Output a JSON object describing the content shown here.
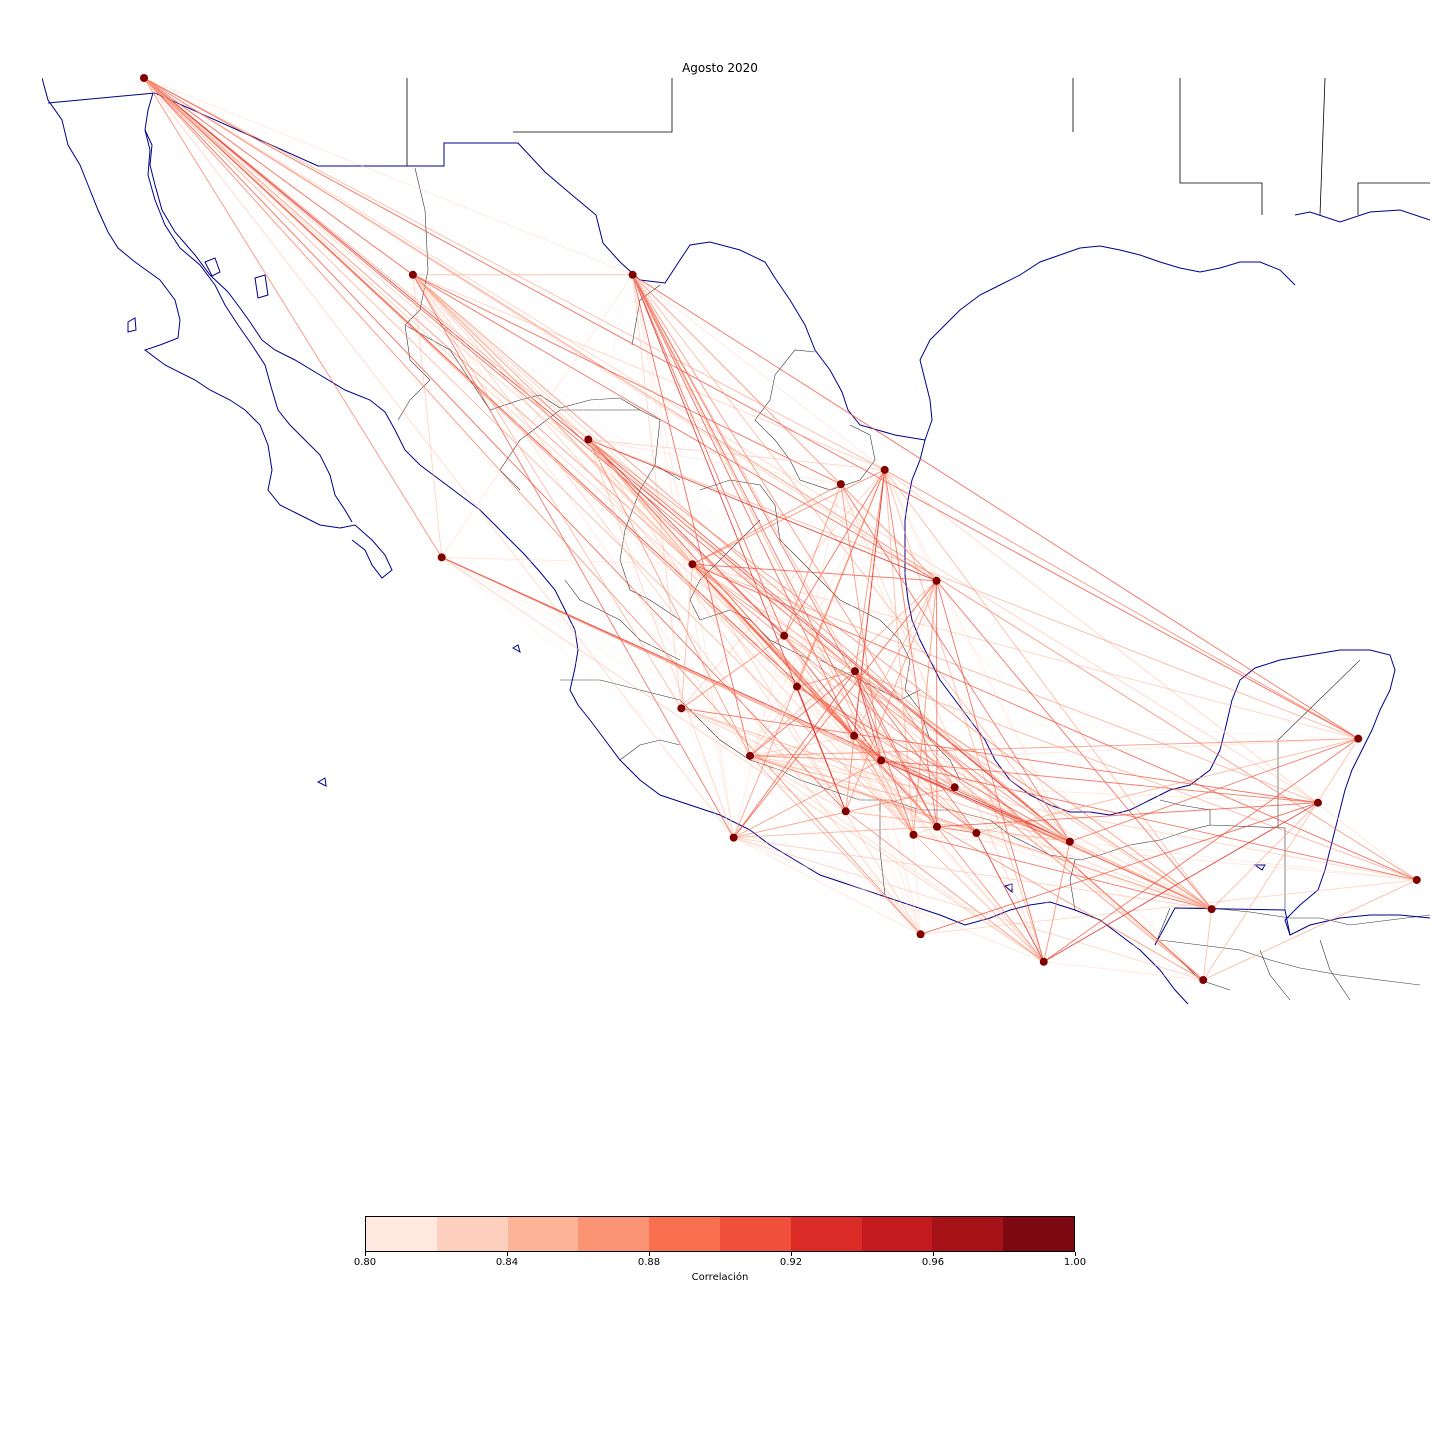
{
  "title": "Agosto 2020",
  "colorbar": {
    "label": "Correlación",
    "ticks": [
      "0.80",
      "0.84",
      "0.88",
      "0.92",
      "0.96",
      "1.00"
    ],
    "tick_values": [
      0.8,
      0.84,
      0.88,
      0.92,
      0.96,
      1.0
    ],
    "range": [
      0.8,
      1.0
    ],
    "colors": [
      "#fee8df",
      "#fcd0bc",
      "#fcb498",
      "#fb9473",
      "#f9704f",
      "#f0503b",
      "#db2b26",
      "#c31a1f",
      "#a51217",
      "#7d0812"
    ]
  },
  "colors": {
    "coast": "#00008b",
    "borders": "#000000",
    "node": "#800000"
  },
  "chart_data": {
    "type": "network-map",
    "title": "Agosto 2020",
    "colorbar_label": "Correlación",
    "value_range": [
      0.8,
      1.0
    ],
    "nodes": [
      {
        "id": "tijuana",
        "lat": 32.52,
        "lon": -117.03
      },
      {
        "id": "hermosillo",
        "lat": 29.08,
        "lon": -110.96
      },
      {
        "id": "chihuahua",
        "lat": 29.08,
        "lon": -106.0
      },
      {
        "id": "monterrey",
        "lat": 25.67,
        "lon": -100.31
      },
      {
        "id": "la-paz",
        "lat": 24.14,
        "lon": -110.31
      },
      {
        "id": "culiacan",
        "lat": 26.2,
        "lon": -107.0
      },
      {
        "id": "durango",
        "lat": 24.02,
        "lon": -104.65
      },
      {
        "id": "saltillo",
        "lat": 25.42,
        "lon": -101.3
      },
      {
        "id": "ciudad-victoria",
        "lat": 23.73,
        "lon": -99.14
      },
      {
        "id": "zacatecas",
        "lat": 22.77,
        "lon": -102.58
      },
      {
        "id": "tepic",
        "lat": 21.5,
        "lon": -104.9
      },
      {
        "id": "aguascalientes",
        "lat": 21.88,
        "lon": -102.29
      },
      {
        "id": "san-luis-potosi",
        "lat": 22.15,
        "lon": -100.98
      },
      {
        "id": "guadalajara",
        "lat": 20.67,
        "lon": -103.35
      },
      {
        "id": "guanajuato",
        "lat": 21.02,
        "lon": -101.0
      },
      {
        "id": "queretaro",
        "lat": 20.59,
        "lon": -100.39
      },
      {
        "id": "morelia",
        "lat": 19.7,
        "lon": -101.19
      },
      {
        "id": "pachuca",
        "lat": 20.12,
        "lon": -98.73
      },
      {
        "id": "colima",
        "lat": 19.24,
        "lon": -103.72
      },
      {
        "id": "toluca",
        "lat": 19.29,
        "lon": -99.66
      },
      {
        "id": "cdmx",
        "lat": 19.43,
        "lon": -99.13
      },
      {
        "id": "tlaxcala",
        "lat": 19.32,
        "lon": -98.24
      },
      {
        "id": "veracruz",
        "lat": 19.17,
        "lon": -96.13
      },
      {
        "id": "chilpancingo",
        "lat": 17.55,
        "lon": -99.5
      },
      {
        "id": "villahermosa",
        "lat": 17.99,
        "lon": -92.93
      },
      {
        "id": "oaxaca",
        "lat": 17.07,
        "lon": -96.72
      },
      {
        "id": "tuxtla",
        "lat": 16.75,
        "lon": -93.12
      },
      {
        "id": "merida",
        "lat": 20.97,
        "lon": -89.62
      },
      {
        "id": "campeche",
        "lat": 19.85,
        "lon": -90.53
      },
      {
        "id": "chetumal",
        "lat": 18.5,
        "lon": -88.3
      }
    ]
  }
}
